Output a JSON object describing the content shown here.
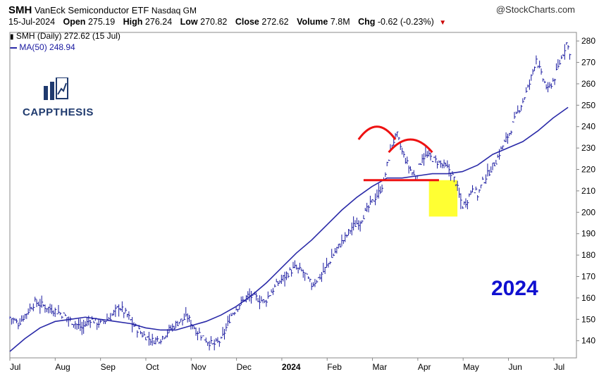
{
  "header": {
    "symbol": "SMH",
    "name": "VanEck Semiconductor ETF",
    "exchange": "Nasdaq GM",
    "date": "15-Jul-2024",
    "open_label": "Open",
    "open": "275.19",
    "high_label": "High",
    "high": "276.24",
    "low_label": "Low",
    "low": "270.82",
    "close_label": "Close",
    "close": "272.62",
    "volume_label": "Volume",
    "volume": "7.8M",
    "chg_label": "Chg",
    "chg": "-0.62 (-0.23%)",
    "source": "@StockCharts.com"
  },
  "legend": {
    "price": "SMH (Daily) 272.62 (15 Jul)",
    "ma": "MA(50) 248.94"
  },
  "logo": {
    "text": "CAPPTHESIS"
  },
  "annotation": {
    "year": "2024"
  },
  "colors": {
    "price": "#1a1aa0",
    "ma": "#2a2aa8",
    "neckline": "#ee1111",
    "highlight": "#ffff33",
    "year_text": "#1010d0"
  },
  "chart_data": {
    "type": "line",
    "ylim": [
      132,
      284
    ],
    "y_ticks": [
      140,
      150,
      160,
      170,
      180,
      190,
      200,
      210,
      220,
      230,
      240,
      250,
      260,
      270,
      280
    ],
    "x_tick_labels": [
      "Jul",
      "Aug",
      "Sep",
      "Oct",
      "Nov",
      "Dec",
      "2024",
      "Feb",
      "Mar",
      "Apr",
      "May",
      "Jun",
      "Jul"
    ],
    "series": [
      {
        "name": "SMH (Daily)",
        "points": [
          [
            0,
            151
          ],
          [
            5,
            148
          ],
          [
            10,
            153
          ],
          [
            15,
            158
          ],
          [
            21,
            156
          ],
          [
            27,
            154
          ],
          [
            32,
            152
          ],
          [
            37,
            149
          ],
          [
            43,
            146
          ],
          [
            48,
            150
          ],
          [
            54,
            148
          ],
          [
            60,
            151
          ],
          [
            65,
            156
          ],
          [
            70,
            152
          ],
          [
            74,
            147
          ],
          [
            79,
            143
          ],
          [
            85,
            140
          ],
          [
            90,
            141
          ],
          [
            95,
            145
          ],
          [
            101,
            149
          ],
          [
            106,
            151
          ],
          [
            111,
            145
          ],
          [
            116,
            141
          ],
          [
            121,
            138
          ],
          [
            126,
            140
          ],
          [
            129,
            146
          ],
          [
            132,
            152
          ],
          [
            137,
            157
          ],
          [
            142,
            161
          ],
          [
            147,
            160
          ],
          [
            152,
            158
          ],
          [
            156,
            163
          ],
          [
            160,
            167
          ],
          [
            165,
            171
          ],
          [
            170,
            174
          ],
          [
            175,
            172
          ],
          [
            180,
            166
          ],
          [
            185,
            170
          ],
          [
            190,
            176
          ],
          [
            195,
            183
          ],
          [
            200,
            188
          ],
          [
            204,
            193
          ],
          [
            209,
            196
          ],
          [
            213,
            201
          ],
          [
            217,
            206
          ],
          [
            220,
            209
          ],
          [
            223,
            214
          ],
          [
            225,
            222
          ],
          [
            228,
            232
          ],
          [
            231,
            236
          ],
          [
            234,
            228
          ],
          [
            238,
            221
          ],
          [
            242,
            216
          ],
          [
            246,
            226
          ],
          [
            250,
            226
          ],
          [
            254,
            224
          ],
          [
            258,
            222
          ],
          [
            262,
            220
          ],
          [
            266,
            214
          ],
          [
            268,
            208
          ],
          [
            270,
            203
          ],
          [
            273,
            206
          ],
          [
            276,
            212
          ],
          [
            279,
            208
          ],
          [
            282,
            214
          ],
          [
            286,
            219
          ],
          [
            290,
            224
          ],
          [
            294,
            231
          ],
          [
            298,
            237
          ],
          [
            302,
            245
          ],
          [
            306,
            252
          ],
          [
            310,
            260
          ],
          [
            314,
            272
          ],
          [
            317,
            264
          ],
          [
            321,
            257
          ],
          [
            325,
            263
          ],
          [
            329,
            272
          ],
          [
            332,
            279
          ],
          [
            335,
            273
          ]
        ]
      },
      {
        "name": "MA(50)",
        "points": [
          [
            0,
            135
          ],
          [
            9,
            141
          ],
          [
            18,
            146
          ],
          [
            27,
            149
          ],
          [
            36,
            150
          ],
          [
            45,
            151
          ],
          [
            54,
            150
          ],
          [
            63,
            149
          ],
          [
            72,
            148
          ],
          [
            81,
            146
          ],
          [
            90,
            145
          ],
          [
            99,
            145
          ],
          [
            108,
            147
          ],
          [
            117,
            149
          ],
          [
            126,
            152
          ],
          [
            135,
            156
          ],
          [
            144,
            161
          ],
          [
            153,
            167
          ],
          [
            162,
            174
          ],
          [
            171,
            181
          ],
          [
            180,
            187
          ],
          [
            189,
            194
          ],
          [
            198,
            201
          ],
          [
            207,
            207
          ],
          [
            216,
            212
          ],
          [
            225,
            216
          ],
          [
            234,
            216
          ],
          [
            243,
            217
          ],
          [
            252,
            218
          ],
          [
            261,
            218
          ],
          [
            270,
            219
          ],
          [
            279,
            222
          ],
          [
            288,
            227
          ],
          [
            297,
            230
          ],
          [
            306,
            233
          ],
          [
            315,
            238
          ],
          [
            324,
            244
          ],
          [
            333,
            249
          ]
        ]
      }
    ],
    "overlays": {
      "neckline_y": 215,
      "neckline_x": [
        211,
        256
      ],
      "shoulder_arcs": [
        {
          "x": [
            208,
            230
          ],
          "peak": 240
        },
        {
          "x": [
            226,
            252
          ],
          "peak": 234
        }
      ],
      "highlight": {
        "x": [
          250,
          267
        ],
        "y": [
          198,
          215
        ]
      }
    }
  }
}
